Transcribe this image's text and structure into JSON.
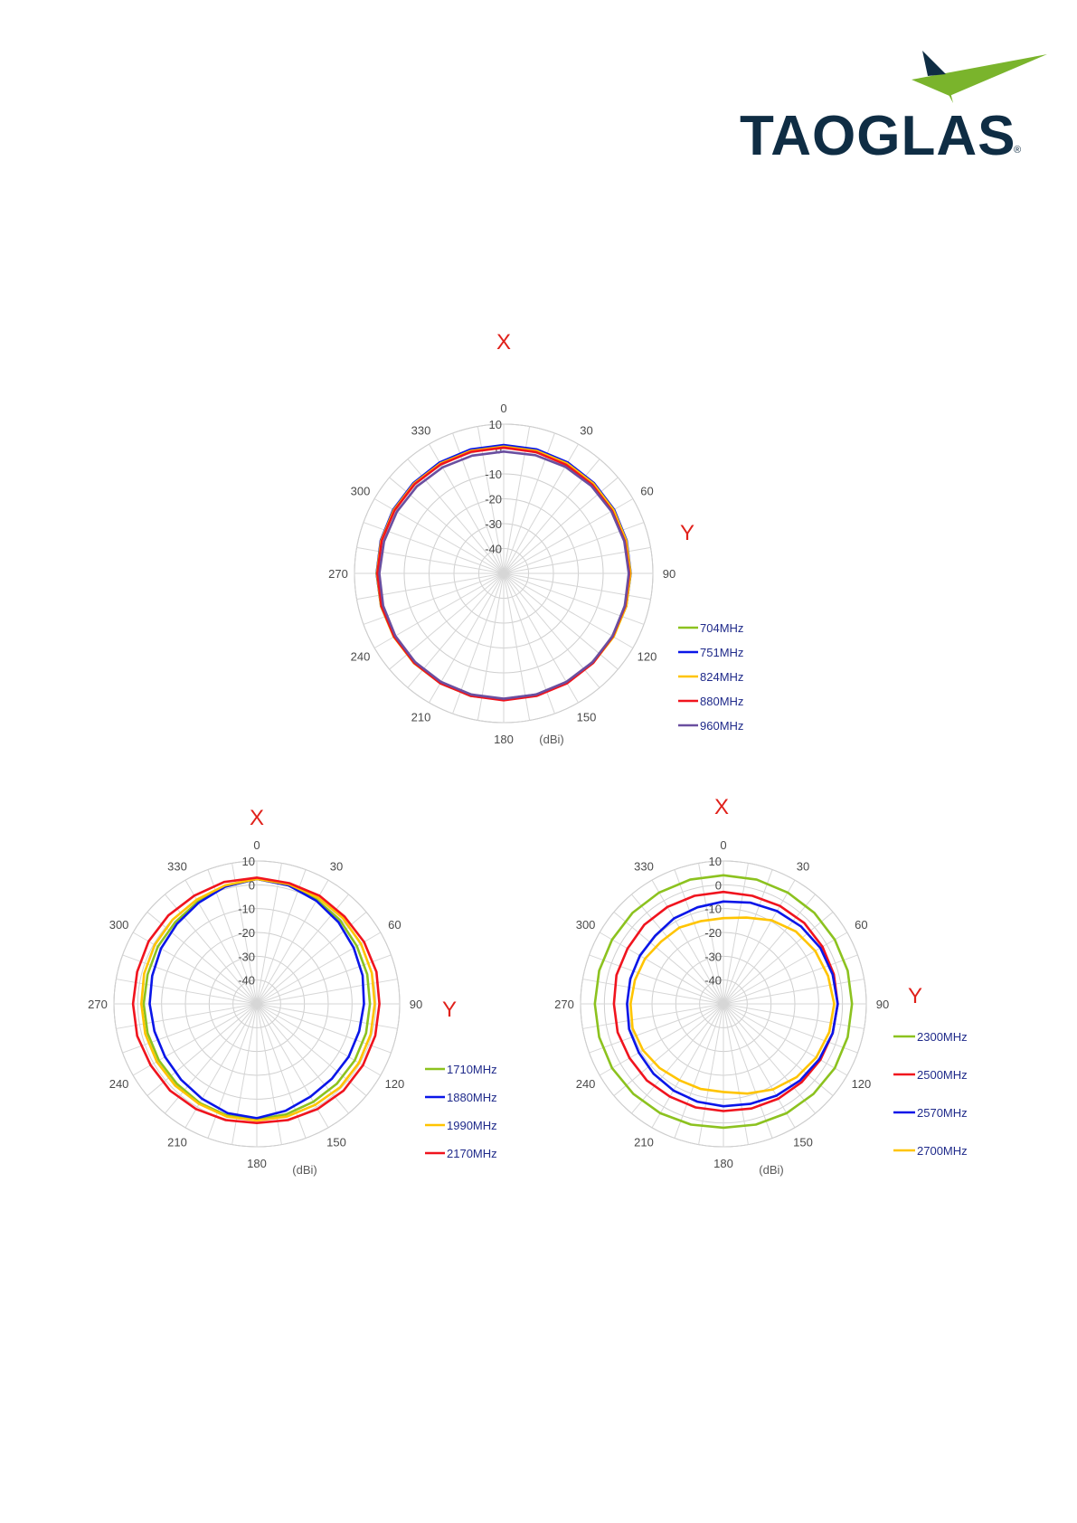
{
  "brand": {
    "name": "TAOGLAS",
    "registered_mark": "®",
    "colors": {
      "text": "#0f2d44",
      "green": "#7ab42c",
      "navy": "#0f2d44"
    }
  },
  "chart_data": [
    {
      "type": "polar",
      "axis_top_label": "X",
      "axis_right_label": "Y",
      "unit_label": "(dBi)",
      "angle_ticks": [
        0,
        30,
        60,
        90,
        120,
        150,
        180,
        210,
        240,
        270,
        300,
        330
      ],
      "radial_ticks": [
        10,
        0,
        -10,
        -20,
        -30,
        -40
      ],
      "rlim": [
        -50,
        10
      ],
      "grid": true,
      "legend_position": "bottom-right",
      "series": [
        {
          "name": "704MHz",
          "color": "#8cc21f",
          "values": [
            1.2,
            1.2,
            1.1,
            1.1,
            1.0,
            1.0,
            1.0,
            1.0,
            1.0,
            0.8,
            0.8,
            0.8,
            0.8,
            1.0,
            1.0,
            1.0,
            1.0,
            1.1,
            1.1,
            1.1,
            1.1,
            1.2,
            1.2,
            1.2
          ]
        },
        {
          "name": "751MHz",
          "color": "#0a16e8",
          "values": [
            1.6,
            1.6,
            1.5,
            1.4,
            1.3,
            1.2,
            1.1,
            1.0,
            0.8,
            0.6,
            0.5,
            0.5,
            0.5,
            0.6,
            0.7,
            0.8,
            0.9,
            1.0,
            1.1,
            1.2,
            1.3,
            1.4,
            1.5,
            1.6
          ]
        },
        {
          "name": "824MHz",
          "color": "#ffc400",
          "values": [
            1.0,
            1.0,
            1.0,
            1.0,
            1.0,
            1.0,
            1.0,
            1.0,
            1.0,
            0.9,
            0.9,
            0.9,
            0.9,
            0.9,
            0.9,
            1.0,
            1.0,
            1.0,
            1.0,
            1.0,
            1.0,
            1.0,
            1.0,
            1.0
          ]
        },
        {
          "name": "880MHz",
          "color": "#f0141e",
          "values": [
            0.6,
            0.5,
            0.4,
            0.4,
            0.3,
            0.4,
            0.5,
            0.6,
            0.7,
            0.9,
            1.0,
            1.0,
            1.0,
            1.0,
            1.0,
            0.9,
            0.9,
            0.9,
            0.8,
            0.8,
            0.7,
            0.7,
            0.6,
            0.6
          ]
        },
        {
          "name": "960MHz",
          "color": "#6a4fa0",
          "values": [
            -1.0,
            -0.8,
            -0.5,
            -0.2,
            0.0,
            0.2,
            0.3,
            0.4,
            0.5,
            0.5,
            0.4,
            0.4,
            0.4,
            0.4,
            0.4,
            0.4,
            0.3,
            0.2,
            0.0,
            -0.2,
            -0.4,
            -0.6,
            -0.8,
            -1.0
          ]
        }
      ]
    },
    {
      "type": "polar",
      "axis_top_label": "X",
      "axis_right_label": "Y",
      "unit_label": "(dBi)",
      "angle_ticks": [
        0,
        30,
        60,
        90,
        120,
        150,
        180,
        210,
        240,
        270,
        300,
        330
      ],
      "radial_ticks": [
        10,
        0,
        -10,
        -20,
        -30,
        -40
      ],
      "rlim": [
        -50,
        10
      ],
      "grid": true,
      "legend_position": "bottom-right",
      "series": [
        {
          "name": "1710MHz",
          "color": "#8cc21f",
          "values": [
            2.5,
            1.5,
            0.5,
            -0.5,
            -1.5,
            -2.0,
            -2.5,
            -2.5,
            -2.5,
            -2.5,
            -2.5,
            -2.0,
            -1.5,
            -1.5,
            -2.0,
            -2.5,
            -2.5,
            -2.5,
            -2.5,
            -2.5,
            -2.0,
            -1.5,
            -0.5,
            1.0
          ]
        },
        {
          "name": "1880MHz",
          "color": "#0a16e8",
          "values": [
            2.5,
            1.5,
            0.0,
            -1.5,
            -3.0,
            -4.0,
            -5.0,
            -5.5,
            -5.5,
            -5.5,
            -5.0,
            -3.5,
            -2.0,
            -2.5,
            -4.0,
            -5.0,
            -5.5,
            -5.5,
            -5.0,
            -4.5,
            -3.5,
            -2.5,
            -1.0,
            1.0
          ]
        },
        {
          "name": "1990MHz",
          "color": "#ffc400",
          "values": [
            2.5,
            2.0,
            1.5,
            1.0,
            0.5,
            0.0,
            -0.5,
            -0.5,
            -0.5,
            -0.5,
            -1.0,
            -1.0,
            -1.0,
            -1.0,
            -1.5,
            -1.5,
            -1.5,
            -1.5,
            -1.5,
            -1.0,
            -0.5,
            0.0,
            0.5,
            1.5
          ]
        },
        {
          "name": "2170MHz",
          "color": "#f0141e",
          "values": [
            3.0,
            2.5,
            2.5,
            2.0,
            2.0,
            2.0,
            1.5,
            1.5,
            1.5,
            1.5,
            1.0,
            0.5,
            0.0,
            0.5,
            1.0,
            1.5,
            1.5,
            2.0,
            2.0,
            2.0,
            2.5,
            2.5,
            2.5,
            3.0
          ]
        }
      ]
    },
    {
      "type": "polar",
      "axis_top_label": "X",
      "axis_right_label": "Y",
      "unit_label": "(dBi)",
      "angle_ticks": [
        0,
        30,
        60,
        90,
        120,
        150,
        180,
        210,
        240,
        270,
        300,
        330
      ],
      "radial_ticks": [
        10,
        0,
        -10,
        -20,
        -30,
        -40
      ],
      "rlim": [
        -50,
        10
      ],
      "grid": true,
      "legend_position": "bottom-right",
      "series": [
        {
          "name": "2300MHz",
          "color": "#8cc21f",
          "values": [
            4.0,
            4.0,
            4.0,
            4.0,
            4.0,
            4.0,
            4.0,
            4.0,
            4.0,
            3.5,
            3.0,
            2.5,
            2.0,
            2.5,
            3.0,
            3.5,
            4.0,
            4.0,
            4.0,
            4.0,
            4.0,
            4.0,
            4.0,
            4.0
          ]
        },
        {
          "name": "2500MHz",
          "color": "#f0141e",
          "values": [
            -3.0,
            -3.0,
            -2.5,
            -2.0,
            -2.0,
            -2.0,
            -2.0,
            -2.5,
            -3.0,
            -3.5,
            -4.0,
            -4.5,
            -5.0,
            -5.0,
            -5.0,
            -4.5,
            -4.5,
            -4.0,
            -4.0,
            -3.5,
            -3.5,
            -3.0,
            -3.0,
            -3.0
          ]
        },
        {
          "name": "2570MHz",
          "color": "#0a16e8",
          "values": [
            -7.0,
            -6.0,
            -5.0,
            -4.0,
            -3.0,
            -2.5,
            -2.0,
            -2.5,
            -3.5,
            -4.5,
            -5.5,
            -6.5,
            -7.0,
            -7.5,
            -8.0,
            -8.5,
            -9.0,
            -9.0,
            -9.5,
            -9.5,
            -9.5,
            -9.5,
            -8.5,
            -8.0
          ]
        },
        {
          "name": "2700MHz",
          "color": "#ffc400",
          "values": [
            -14.0,
            -12.5,
            -9.5,
            -7.0,
            -5.5,
            -4.5,
            -3.5,
            -4.0,
            -5.0,
            -6.5,
            -8.5,
            -11.0,
            -13.0,
            -13.0,
            -13.0,
            -12.0,
            -11.0,
            -10.5,
            -11.0,
            -11.5,
            -12.0,
            -13.0,
            -13.0,
            -14.0
          ]
        }
      ]
    }
  ]
}
